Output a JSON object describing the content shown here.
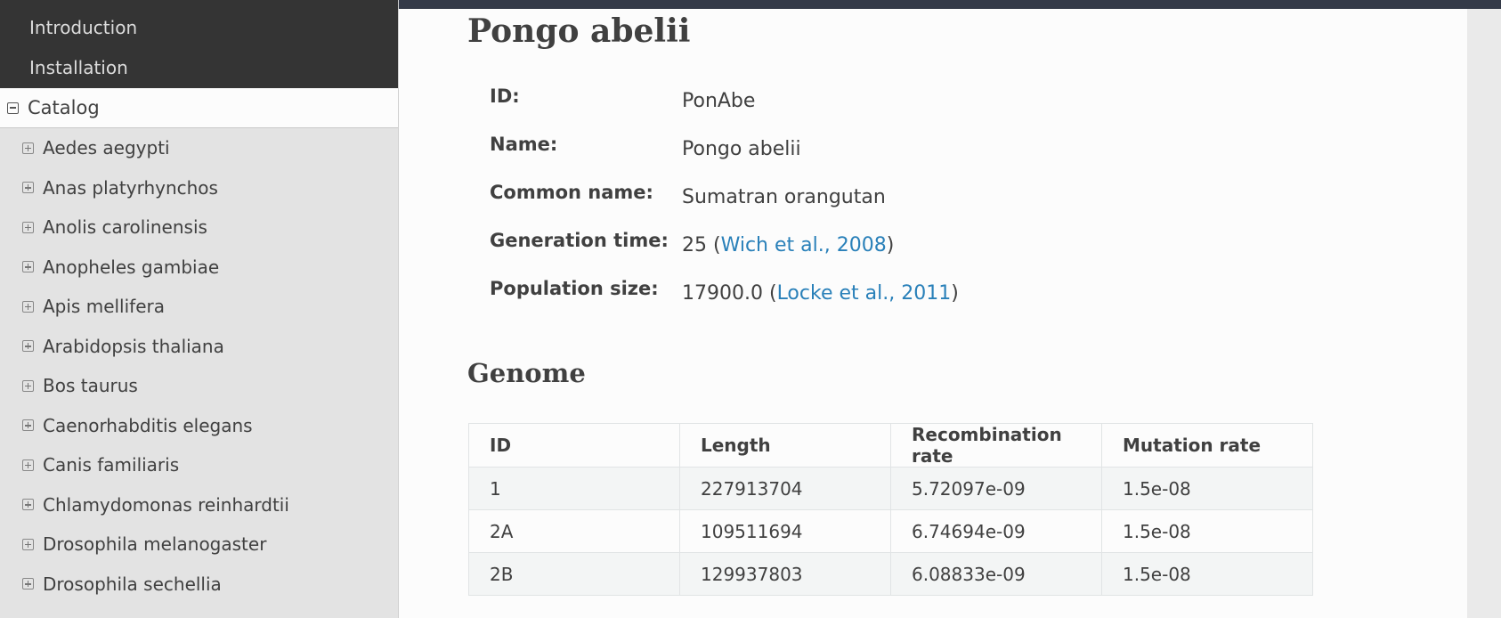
{
  "sidebar": {
    "top_items": [
      "Introduction",
      "Installation"
    ],
    "current": "Catalog",
    "species": [
      "Aedes aegypti",
      "Anas platyrhynchos",
      "Anolis carolinensis",
      "Anopheles gambiae",
      "Apis mellifera",
      "Arabidopsis thaliana",
      "Bos taurus",
      "Caenorhabditis elegans",
      "Canis familiaris",
      "Chlamydomonas reinhardtii",
      "Drosophila melanogaster",
      "Drosophila sechellia"
    ]
  },
  "page": {
    "title": "Pongo abelii",
    "info": {
      "id_label": "ID:",
      "id_value": "PonAbe",
      "name_label": "Name:",
      "name_value": "Pongo abelii",
      "common_label": "Common name:",
      "common_value": "Sumatran orangutan",
      "gen_label": "Generation time:",
      "gen_value": "25",
      "gen_ref": "Wich et al., 2008",
      "pop_label": "Population size:",
      "pop_value": "17900.0",
      "pop_ref": "Locke et al., 2011"
    },
    "genome_heading": "Genome",
    "table": {
      "headers": [
        "ID",
        "Length",
        "Recombination rate",
        "Mutation rate"
      ],
      "rows": [
        [
          "1",
          "227913704",
          "5.72097e-09",
          "1.5e-08"
        ],
        [
          "2A",
          "109511694",
          "6.74694e-09",
          "1.5e-08"
        ],
        [
          "2B",
          "129937803",
          "6.08833e-09",
          "1.5e-08"
        ]
      ]
    }
  },
  "colors": {
    "sidebar_dark": "#343434",
    "link": "#2980b9",
    "topbar": "#343a48"
  }
}
